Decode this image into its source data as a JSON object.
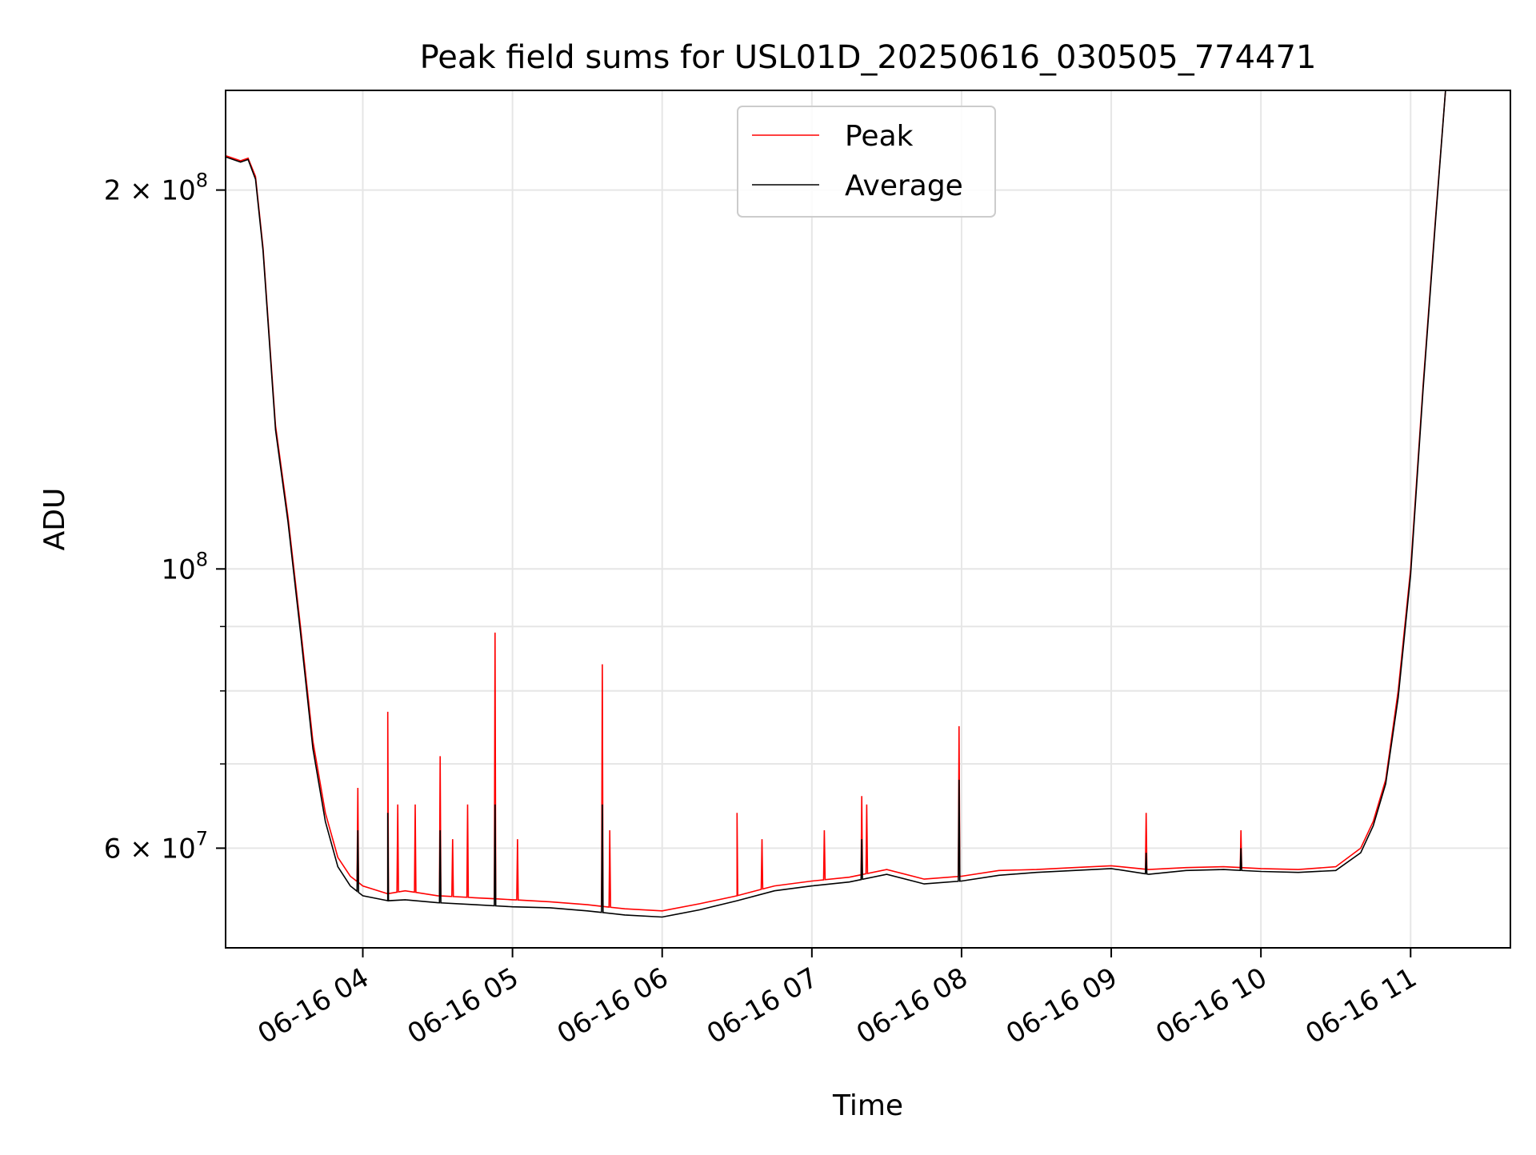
{
  "chart_data": {
    "type": "line",
    "title": "Peak field sums for USL01D_20250616_030505_774471",
    "xlabel": "Time",
    "ylabel": "ADU",
    "yscale": "log",
    "ylim": [
      50000000,
      240000000
    ],
    "xlim": [
      "2025-06-16 03:05",
      "2025-06-16 11:40"
    ],
    "grid": true,
    "legend_position": "upper center",
    "x_ticks": [
      {
        "x": "2025-06-16 04:00",
        "label": "06-16 04"
      },
      {
        "x": "2025-06-16 05:00",
        "label": "06-16 05"
      },
      {
        "x": "2025-06-16 06:00",
        "label": "06-16 06"
      },
      {
        "x": "2025-06-16 07:00",
        "label": "06-16 07"
      },
      {
        "x": "2025-06-16 08:00",
        "label": "06-16 08"
      },
      {
        "x": "2025-06-16 09:00",
        "label": "06-16 09"
      },
      {
        "x": "2025-06-16 10:00",
        "label": "06-16 10"
      },
      {
        "x": "2025-06-16 11:00",
        "label": "06-16 11"
      }
    ],
    "y_ticks": [
      {
        "y": 200000000,
        "base": "2 × 10",
        "exp": "8"
      },
      {
        "y": 100000000,
        "base": "10",
        "exp": "8"
      },
      {
        "y": 60000000,
        "base": "6 × 10",
        "exp": "7"
      }
    ],
    "y_minor_ticks": [
      70000000,
      80000000,
      90000000
    ],
    "series": [
      {
        "name": "Peak",
        "color": "#ff0000",
        "points": [
          [
            "2025-06-16 03:05",
            213000000
          ],
          [
            "2025-06-16 03:11",
            211000000
          ],
          [
            "2025-06-16 03:14",
            212000000
          ],
          [
            "2025-06-16 03:17",
            205000000
          ],
          [
            "2025-06-16 03:20",
            180000000
          ],
          [
            "2025-06-16 03:25",
            130000000
          ],
          [
            "2025-06-16 03:30",
            110000000
          ],
          [
            "2025-06-16 03:35",
            90000000
          ],
          [
            "2025-06-16 03:40",
            73000000
          ],
          [
            "2025-06-16 03:45",
            64000000
          ],
          [
            "2025-06-16 03:50",
            59000000
          ],
          [
            "2025-06-16 03:55",
            57000000
          ],
          [
            "2025-06-16 04:00",
            56000000
          ],
          [
            "2025-06-16 04:10",
            55200000
          ],
          [
            "2025-06-16 04:17",
            55500000
          ],
          [
            "2025-06-16 04:30",
            55000000
          ],
          [
            "2025-06-16 04:45",
            54800000
          ],
          [
            "2025-06-16 05:00",
            54600000
          ],
          [
            "2025-06-16 05:15",
            54400000
          ],
          [
            "2025-06-16 05:30",
            54100000
          ],
          [
            "2025-06-16 05:45",
            53700000
          ],
          [
            "2025-06-16 06:00",
            53500000
          ],
          [
            "2025-06-16 06:15",
            54200000
          ],
          [
            "2025-06-16 06:30",
            55000000
          ],
          [
            "2025-06-16 06:45",
            56000000
          ],
          [
            "2025-06-16 07:00",
            56500000
          ],
          [
            "2025-06-16 07:15",
            56900000
          ],
          [
            "2025-06-16 07:30",
            57700000
          ],
          [
            "2025-06-16 07:45",
            56700000
          ],
          [
            "2025-06-16 08:00",
            57000000
          ],
          [
            "2025-06-16 08:15",
            57600000
          ],
          [
            "2025-06-16 08:30",
            57700000
          ],
          [
            "2025-06-16 08:45",
            57900000
          ],
          [
            "2025-06-16 09:00",
            58100000
          ],
          [
            "2025-06-16 09:15",
            57700000
          ],
          [
            "2025-06-16 09:30",
            57900000
          ],
          [
            "2025-06-16 09:45",
            58000000
          ],
          [
            "2025-06-16 10:00",
            57800000
          ],
          [
            "2025-06-16 10:15",
            57700000
          ],
          [
            "2025-06-16 10:30",
            58000000
          ],
          [
            "2025-06-16 10:40",
            60000000
          ],
          [
            "2025-06-16 10:45",
            63000000
          ],
          [
            "2025-06-16 10:50",
            68000000
          ],
          [
            "2025-06-16 10:55",
            80000000
          ],
          [
            "2025-06-16 11:00",
            100000000
          ],
          [
            "2025-06-16 11:05",
            140000000
          ],
          [
            "2025-06-16 11:10",
            190000000
          ],
          [
            "2025-06-16 11:14",
            240000000
          ]
        ],
        "spikes": [
          [
            "2025-06-16 03:58",
            67000000
          ],
          [
            "2025-06-16 04:10",
            77000000
          ],
          [
            "2025-06-16 04:14",
            65000000
          ],
          [
            "2025-06-16 04:21",
            65000000
          ],
          [
            "2025-06-16 04:31",
            71000000
          ],
          [
            "2025-06-16 04:36",
            61000000
          ],
          [
            "2025-06-16 04:42",
            65000000
          ],
          [
            "2025-06-16 04:53",
            89000000
          ],
          [
            "2025-06-16 05:02",
            61000000
          ],
          [
            "2025-06-16 05:36",
            84000000
          ],
          [
            "2025-06-16 05:39",
            62000000
          ],
          [
            "2025-06-16 06:30",
            64000000
          ],
          [
            "2025-06-16 06:40",
            61000000
          ],
          [
            "2025-06-16 07:05",
            62000000
          ],
          [
            "2025-06-16 07:20",
            66000000
          ],
          [
            "2025-06-16 07:22",
            65000000
          ],
          [
            "2025-06-16 07:59",
            75000000
          ],
          [
            "2025-06-16 09:14",
            64000000
          ],
          [
            "2025-06-16 09:52",
            62000000
          ]
        ]
      },
      {
        "name": "Average",
        "color": "#000000",
        "points": [
          [
            "2025-06-16 03:05",
            212500000
          ],
          [
            "2025-06-16 03:11",
            210500000
          ],
          [
            "2025-06-16 03:14",
            211500000
          ],
          [
            "2025-06-16 03:17",
            204000000
          ],
          [
            "2025-06-16 03:20",
            179000000
          ],
          [
            "2025-06-16 03:25",
            129000000
          ],
          [
            "2025-06-16 03:30",
            109000000
          ],
          [
            "2025-06-16 03:35",
            89000000
          ],
          [
            "2025-06-16 03:40",
            72000000
          ],
          [
            "2025-06-16 03:45",
            63000000
          ],
          [
            "2025-06-16 03:50",
            58000000
          ],
          [
            "2025-06-16 03:55",
            56000000
          ],
          [
            "2025-06-16 04:00",
            55000000
          ],
          [
            "2025-06-16 04:10",
            54500000
          ],
          [
            "2025-06-16 04:17",
            54600000
          ],
          [
            "2025-06-16 04:30",
            54300000
          ],
          [
            "2025-06-16 04:45",
            54100000
          ],
          [
            "2025-06-16 05:00",
            53900000
          ],
          [
            "2025-06-16 05:15",
            53800000
          ],
          [
            "2025-06-16 05:30",
            53500000
          ],
          [
            "2025-06-16 05:45",
            53100000
          ],
          [
            "2025-06-16 06:00",
            52900000
          ],
          [
            "2025-06-16 06:15",
            53600000
          ],
          [
            "2025-06-16 06:30",
            54500000
          ],
          [
            "2025-06-16 06:45",
            55500000
          ],
          [
            "2025-06-16 07:00",
            56000000
          ],
          [
            "2025-06-16 07:15",
            56400000
          ],
          [
            "2025-06-16 07:30",
            57200000
          ],
          [
            "2025-06-16 07:45",
            56200000
          ],
          [
            "2025-06-16 08:00",
            56500000
          ],
          [
            "2025-06-16 08:15",
            57100000
          ],
          [
            "2025-06-16 08:30",
            57400000
          ],
          [
            "2025-06-16 08:45",
            57600000
          ],
          [
            "2025-06-16 09:00",
            57800000
          ],
          [
            "2025-06-16 09:15",
            57200000
          ],
          [
            "2025-06-16 09:30",
            57600000
          ],
          [
            "2025-06-16 09:45",
            57700000
          ],
          [
            "2025-06-16 10:00",
            57500000
          ],
          [
            "2025-06-16 10:15",
            57400000
          ],
          [
            "2025-06-16 10:30",
            57600000
          ],
          [
            "2025-06-16 10:40",
            59500000
          ],
          [
            "2025-06-16 10:45",
            62500000
          ],
          [
            "2025-06-16 10:50",
            67500000
          ],
          [
            "2025-06-16 10:55",
            79000000
          ],
          [
            "2025-06-16 11:00",
            99000000
          ],
          [
            "2025-06-16 11:05",
            139000000
          ],
          [
            "2025-06-16 11:10",
            189000000
          ],
          [
            "2025-06-16 11:14",
            240000000
          ]
        ],
        "spikes": [
          [
            "2025-06-16 03:58",
            62000000
          ],
          [
            "2025-06-16 04:10",
            64000000
          ],
          [
            "2025-06-16 04:31",
            62000000
          ],
          [
            "2025-06-16 04:53",
            65000000
          ],
          [
            "2025-06-16 05:36",
            65000000
          ],
          [
            "2025-06-16 07:20",
            61000000
          ],
          [
            "2025-06-16 07:59",
            68000000
          ],
          [
            "2025-06-16 09:14",
            59500000
          ],
          [
            "2025-06-16 09:52",
            60000000
          ]
        ]
      }
    ]
  }
}
